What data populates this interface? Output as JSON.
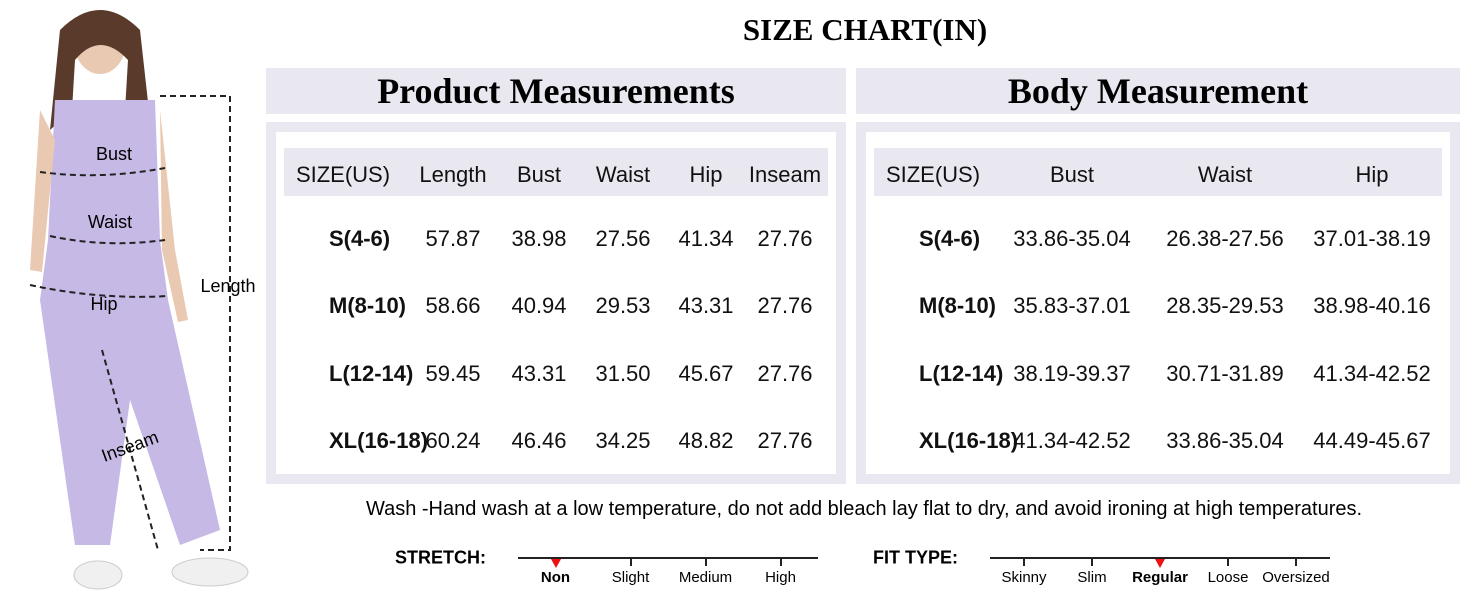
{
  "title": "SIZE CHART(IN)",
  "figure": {
    "labels": {
      "bust": "Bust",
      "waist": "Waist",
      "hip": "Hip",
      "length": "Length",
      "inseam": "Inseam"
    }
  },
  "product": {
    "heading": "Product Measurements",
    "columns": [
      "SIZE(US)",
      "Length",
      "Bust",
      "Waist",
      "Hip",
      "Inseam"
    ],
    "rows": [
      [
        "S(4-6)",
        "57.87",
        "38.98",
        "27.56",
        "41.34",
        "27.76"
      ],
      [
        "M(8-10)",
        "58.66",
        "40.94",
        "29.53",
        "43.31",
        "27.76"
      ],
      [
        "L(12-14)",
        "59.45",
        "43.31",
        "31.50",
        "45.67",
        "27.76"
      ],
      [
        "XL(16-18)",
        "60.24",
        "46.46",
        "34.25",
        "48.82",
        "27.76"
      ]
    ]
  },
  "body": {
    "heading": "Body Measurement",
    "columns": [
      "SIZE(US)",
      "Bust",
      "Waist",
      "Hip"
    ],
    "rows": [
      [
        "S(4-6)",
        "33.86-35.04",
        "26.38-27.56",
        "37.01-38.19"
      ],
      [
        "M(8-10)",
        "35.83-37.01",
        "28.35-29.53",
        "38.98-40.16"
      ],
      [
        "L(12-14)",
        "38.19-39.37",
        "30.71-31.89",
        "41.34-42.52"
      ],
      [
        "XL(16-18)",
        "41.34-42.52",
        "33.86-35.04",
        "44.49-45.67"
      ]
    ]
  },
  "wash": "Wash -Hand wash at a low temperature, do not add bleach lay flat to dry, and avoid ironing at high temperatures.",
  "stretch": {
    "label": "STRETCH:",
    "options": [
      "Non",
      "Slight",
      "Medium",
      "High"
    ],
    "selected": 0
  },
  "fit": {
    "label": "FIT TYPE:",
    "options": [
      "Skinny",
      "Slim",
      "Regular",
      "Loose",
      "Oversized"
    ],
    "selected": 2
  }
}
